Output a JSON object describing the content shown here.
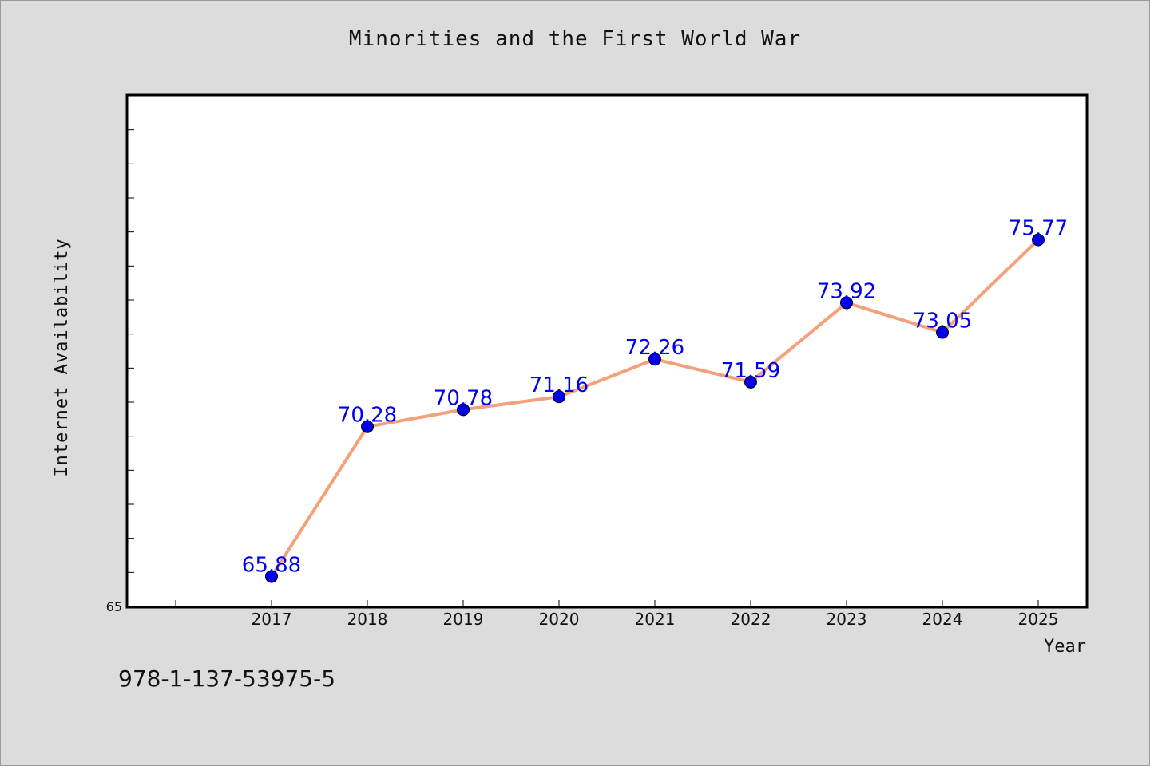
{
  "chart_data": {
    "type": "line",
    "title": "Minorities and the First World War",
    "xlabel": "Year",
    "ylabel": "Internet Availability",
    "categories": [
      "2017",
      "2018",
      "2019",
      "2020",
      "2021",
      "2022",
      "2023",
      "2024",
      "2025"
    ],
    "series": [
      {
        "values": [
          65.88,
          70.28,
          70.78,
          71.16,
          72.26,
          71.59,
          73.92,
          73.05,
          75.77
        ],
        "labels": [
          "65.88",
          "70.28",
          "70.78",
          "71.16",
          "72.26",
          "71.59",
          "73.92",
          "73.05",
          "75.77"
        ],
        "line_color": "#f4a07a",
        "marker_color": "#0000ee",
        "label_color": "#0000ee"
      }
    ],
    "y_tick_labels": [
      "65"
    ],
    "ylim": [
      65,
      80
    ],
    "grid": false,
    "legend": "none"
  },
  "footer": {
    "code": "978-1-137-53975-5"
  },
  "colors": {
    "background": "#dcdcdc",
    "plot_background": "#ffffff",
    "axis": "#000000"
  }
}
